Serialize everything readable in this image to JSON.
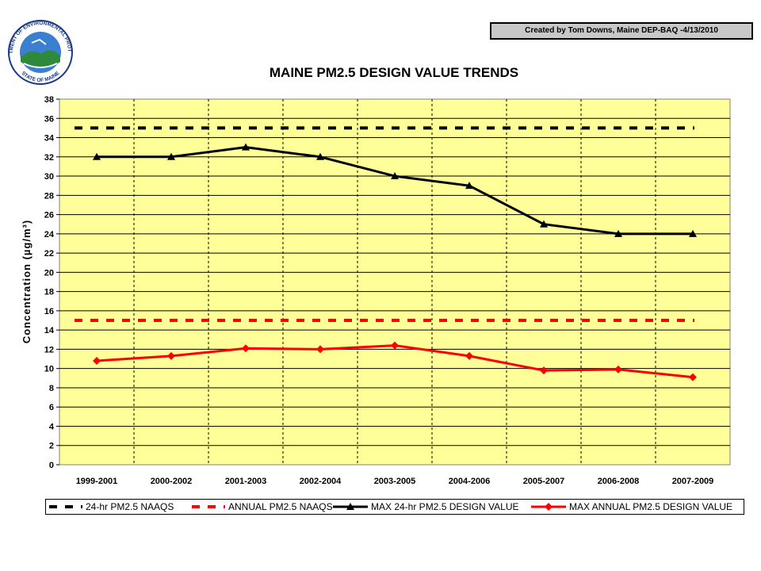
{
  "credit": "Created by Tom Downs, Maine DEP-BAQ -4/13/2010",
  "logo": {
    "icon": "maine-dep-seal-icon",
    "text_top": "DEPARTMENT OF ENVIRONMENTAL PROTECTION",
    "text_bottom": "STATE OF MAINE"
  },
  "chart_data": {
    "type": "line",
    "title": "MAINE PM2.5 DESIGN VALUE TRENDS",
    "xlabel": "",
    "ylabel": "Concentration (µg/m³)",
    "ylim": [
      0,
      38
    ],
    "yticks": [
      0,
      2,
      4,
      6,
      8,
      10,
      12,
      14,
      16,
      18,
      20,
      22,
      24,
      26,
      28,
      30,
      32,
      34,
      36,
      38
    ],
    "categories": [
      "1999-2001",
      "2000-2002",
      "2001-2003",
      "2002-2004",
      "2003-2005",
      "2004-2006",
      "2005-2007",
      "2006-2008",
      "2007-2009"
    ],
    "grid": true,
    "plot_background": "#ffff99",
    "legend_position": "bottom",
    "series": [
      {
        "name": "24-hr PM2.5 NAAQS",
        "values": [
          35,
          35,
          35,
          35,
          35,
          35,
          35,
          35,
          35
        ],
        "color": "#000000",
        "style": "dashed"
      },
      {
        "name": "ANNUAL PM2.5 NAAQS",
        "values": [
          15,
          15,
          15,
          15,
          15,
          15,
          15,
          15,
          15
        ],
        "color": "#ff0000",
        "style": "dashed"
      },
      {
        "name": "MAX 24-hr PM2.5 DESIGN VALUE",
        "values": [
          32,
          32,
          33,
          32,
          30,
          29,
          25,
          24,
          24
        ],
        "color": "#000000",
        "style": "solid",
        "marker": "triangle"
      },
      {
        "name": "MAX ANNUAL PM2.5 DESIGN VALUE",
        "values": [
          10.8,
          11.3,
          12.1,
          12.0,
          12.4,
          11.3,
          9.8,
          9.9,
          9.1
        ],
        "color": "#ff0000",
        "style": "solid",
        "marker": "diamond"
      }
    ]
  }
}
